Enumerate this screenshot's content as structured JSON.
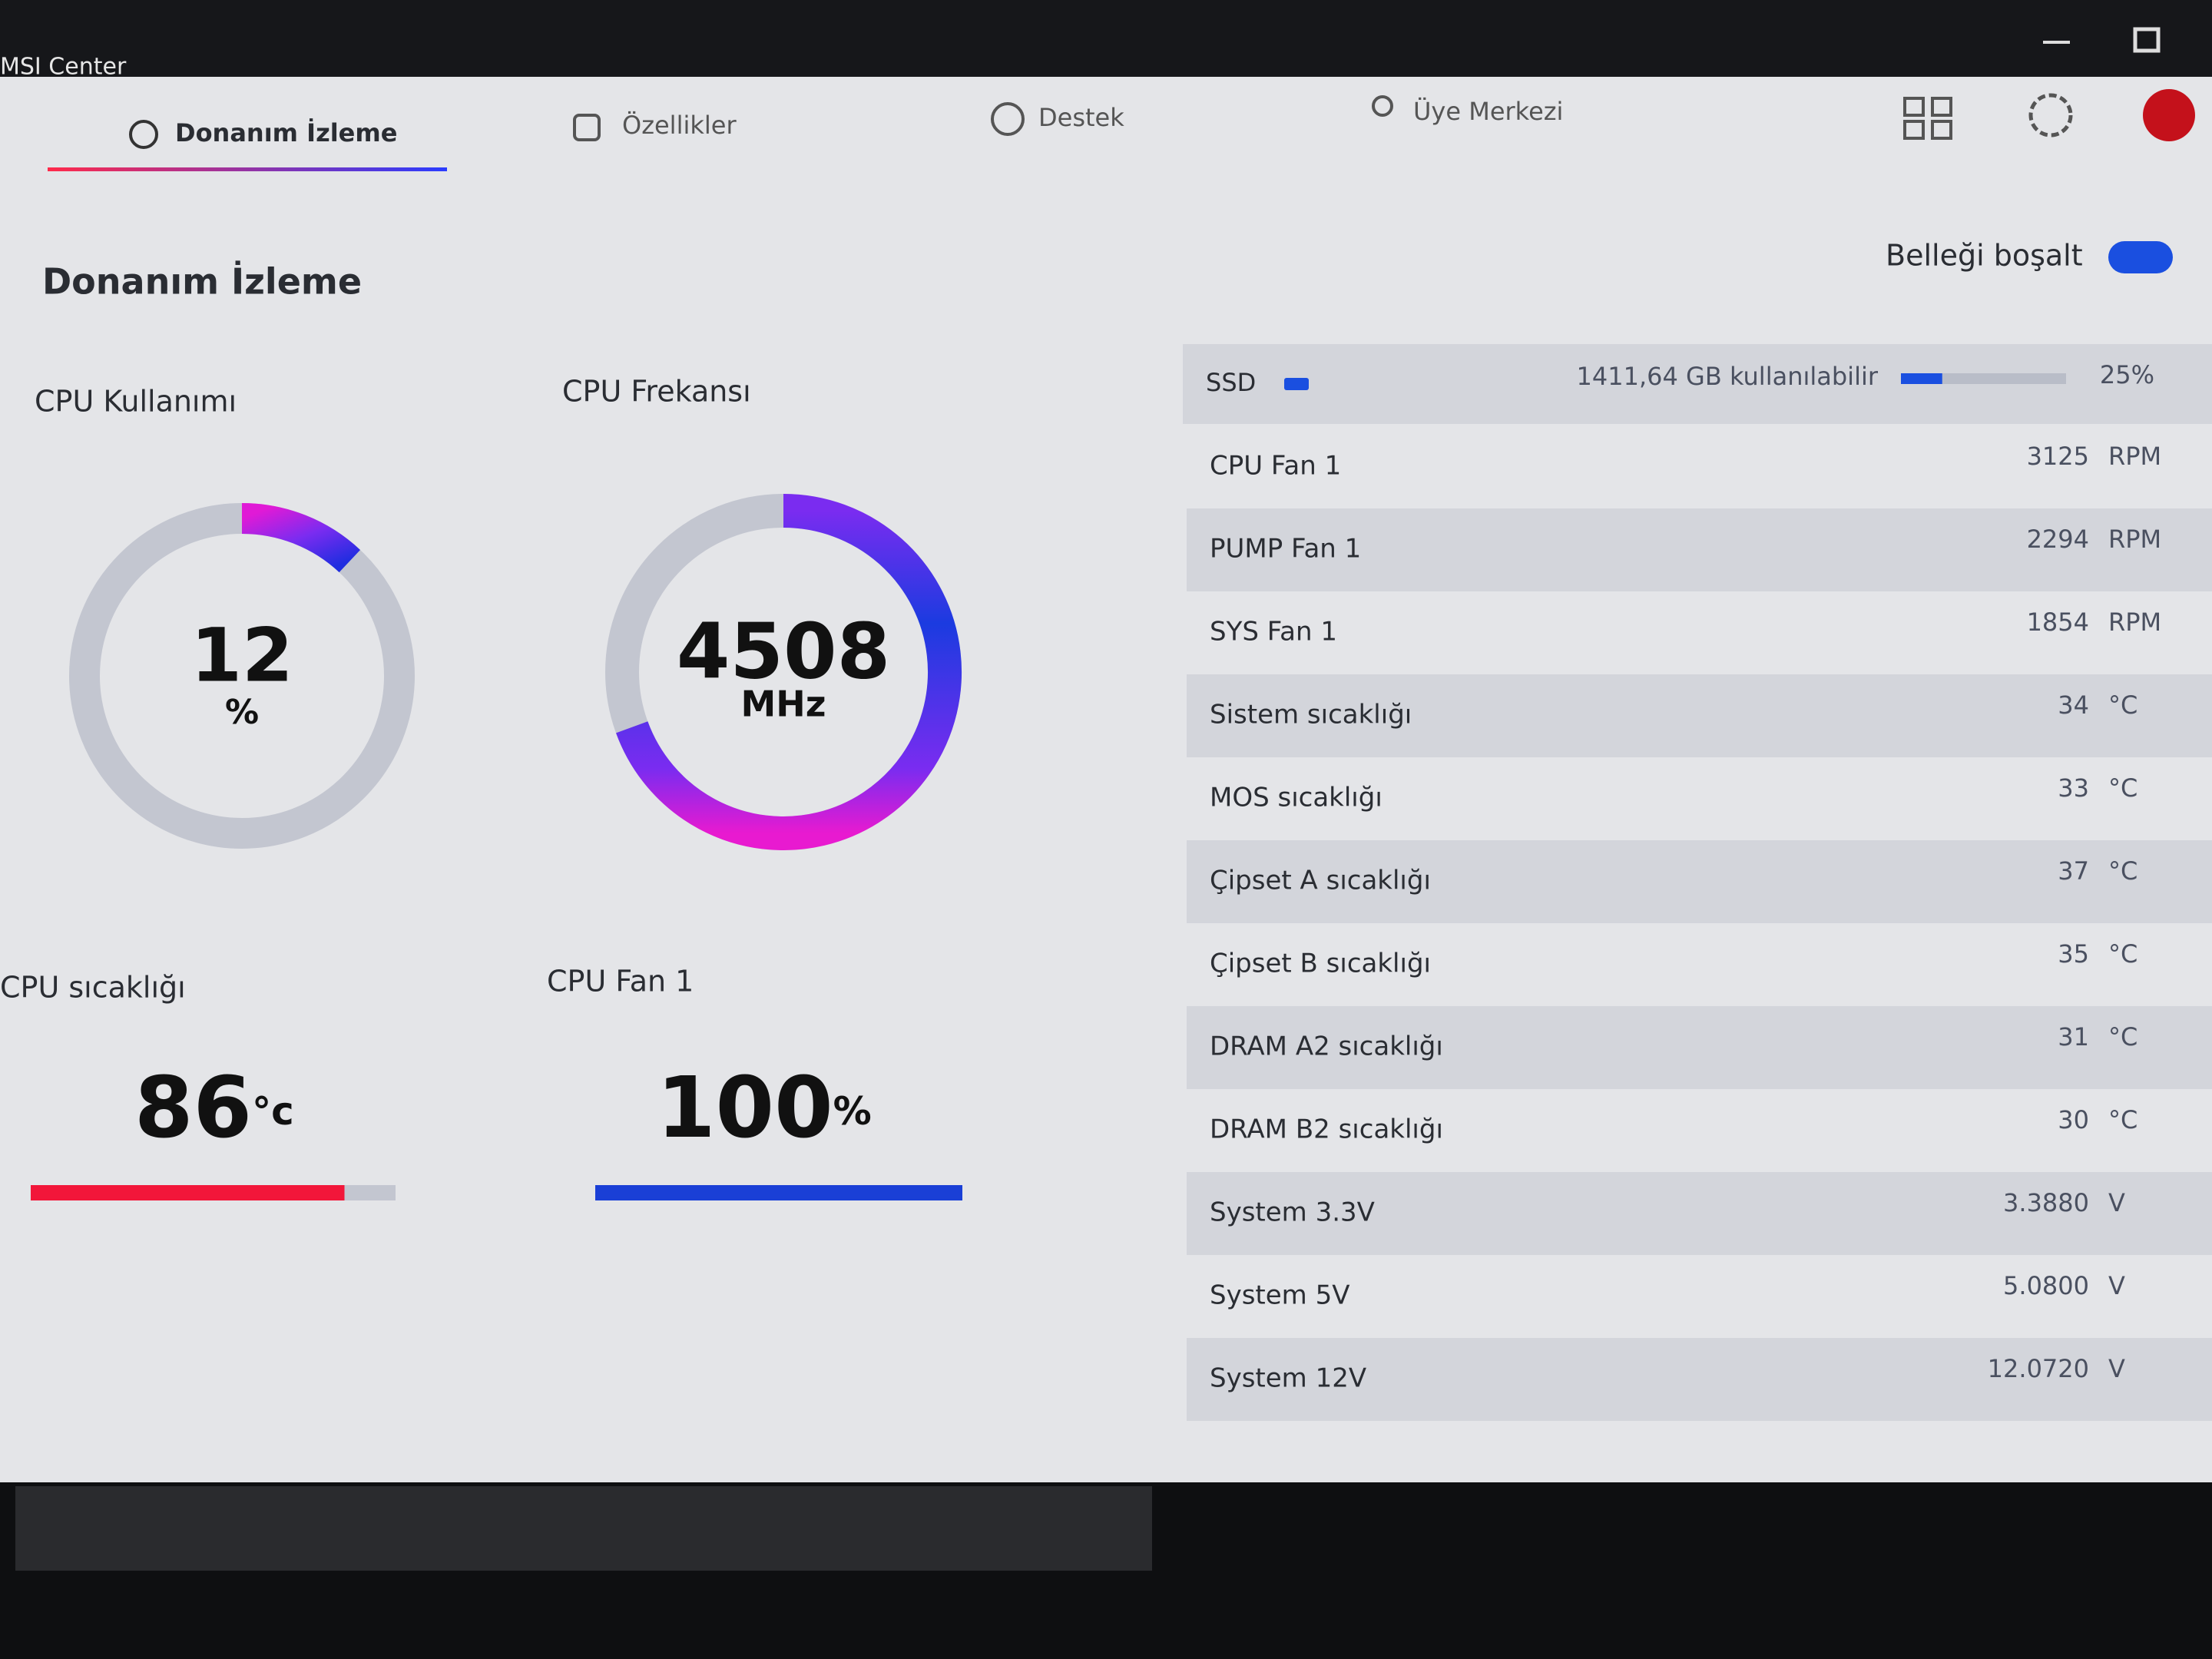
{
  "window": {
    "title": "MSI Center"
  },
  "nav": {
    "tabs": [
      "Donanım İzleme",
      "Özellikler",
      "Destek",
      "Üye Merkezi"
    ]
  },
  "page": {
    "title": "Donanım İzleme",
    "memory_button": "Belleği boşalt"
  },
  "widgets": {
    "cpu_usage": {
      "label": "CPU Kullanımı",
      "value": 12,
      "unit": "%"
    },
    "cpu_frequency": {
      "label": "CPU Frekansı",
      "value": 4508,
      "unit": "MHz"
    },
    "cpu_temperature": {
      "label": "CPU sıcaklığı",
      "value": 86,
      "unit": "°c"
    },
    "cpu_fan": {
      "label": "CPU Fan 1",
      "value": 100,
      "unit": "%"
    }
  },
  "sensors": {
    "ssd": {
      "name": "SSD",
      "available": "1411,64 GB kullanılabilir",
      "usage": {
        "value": 25,
        "label": "25%"
      }
    },
    "rows": [
      {
        "name": "CPU Fan 1",
        "value": 3125,
        "unit": "RPM"
      },
      {
        "name": "PUMP Fan 1",
        "value": 2294,
        "unit": "RPM"
      },
      {
        "name": "SYS Fan 1",
        "value": 1854,
        "unit": "RPM"
      },
      {
        "name": "Sistem sıcaklığı",
        "value": 34,
        "unit": "°C"
      },
      {
        "name": "MOS sıcaklığı",
        "value": 33,
        "unit": "°C"
      },
      {
        "name": "Çipset A sıcaklığı",
        "value": 37,
        "unit": "°C"
      },
      {
        "name": "Çipset B sıcaklığı",
        "value": 35,
        "unit": "°C"
      },
      {
        "name": "DRAM A2 sıcaklığı",
        "value": 31,
        "unit": "°C"
      },
      {
        "name": "DRAM B2 sıcaklığı",
        "value": 30,
        "unit": "°C"
      },
      {
        "name": "System 3.3V",
        "value": "3.3880",
        "unit": "V"
      },
      {
        "name": "System 5V",
        "value": "5.0800",
        "unit": "V"
      },
      {
        "name": "System 12V",
        "value": "12.0720",
        "unit": "V"
      }
    ]
  }
}
